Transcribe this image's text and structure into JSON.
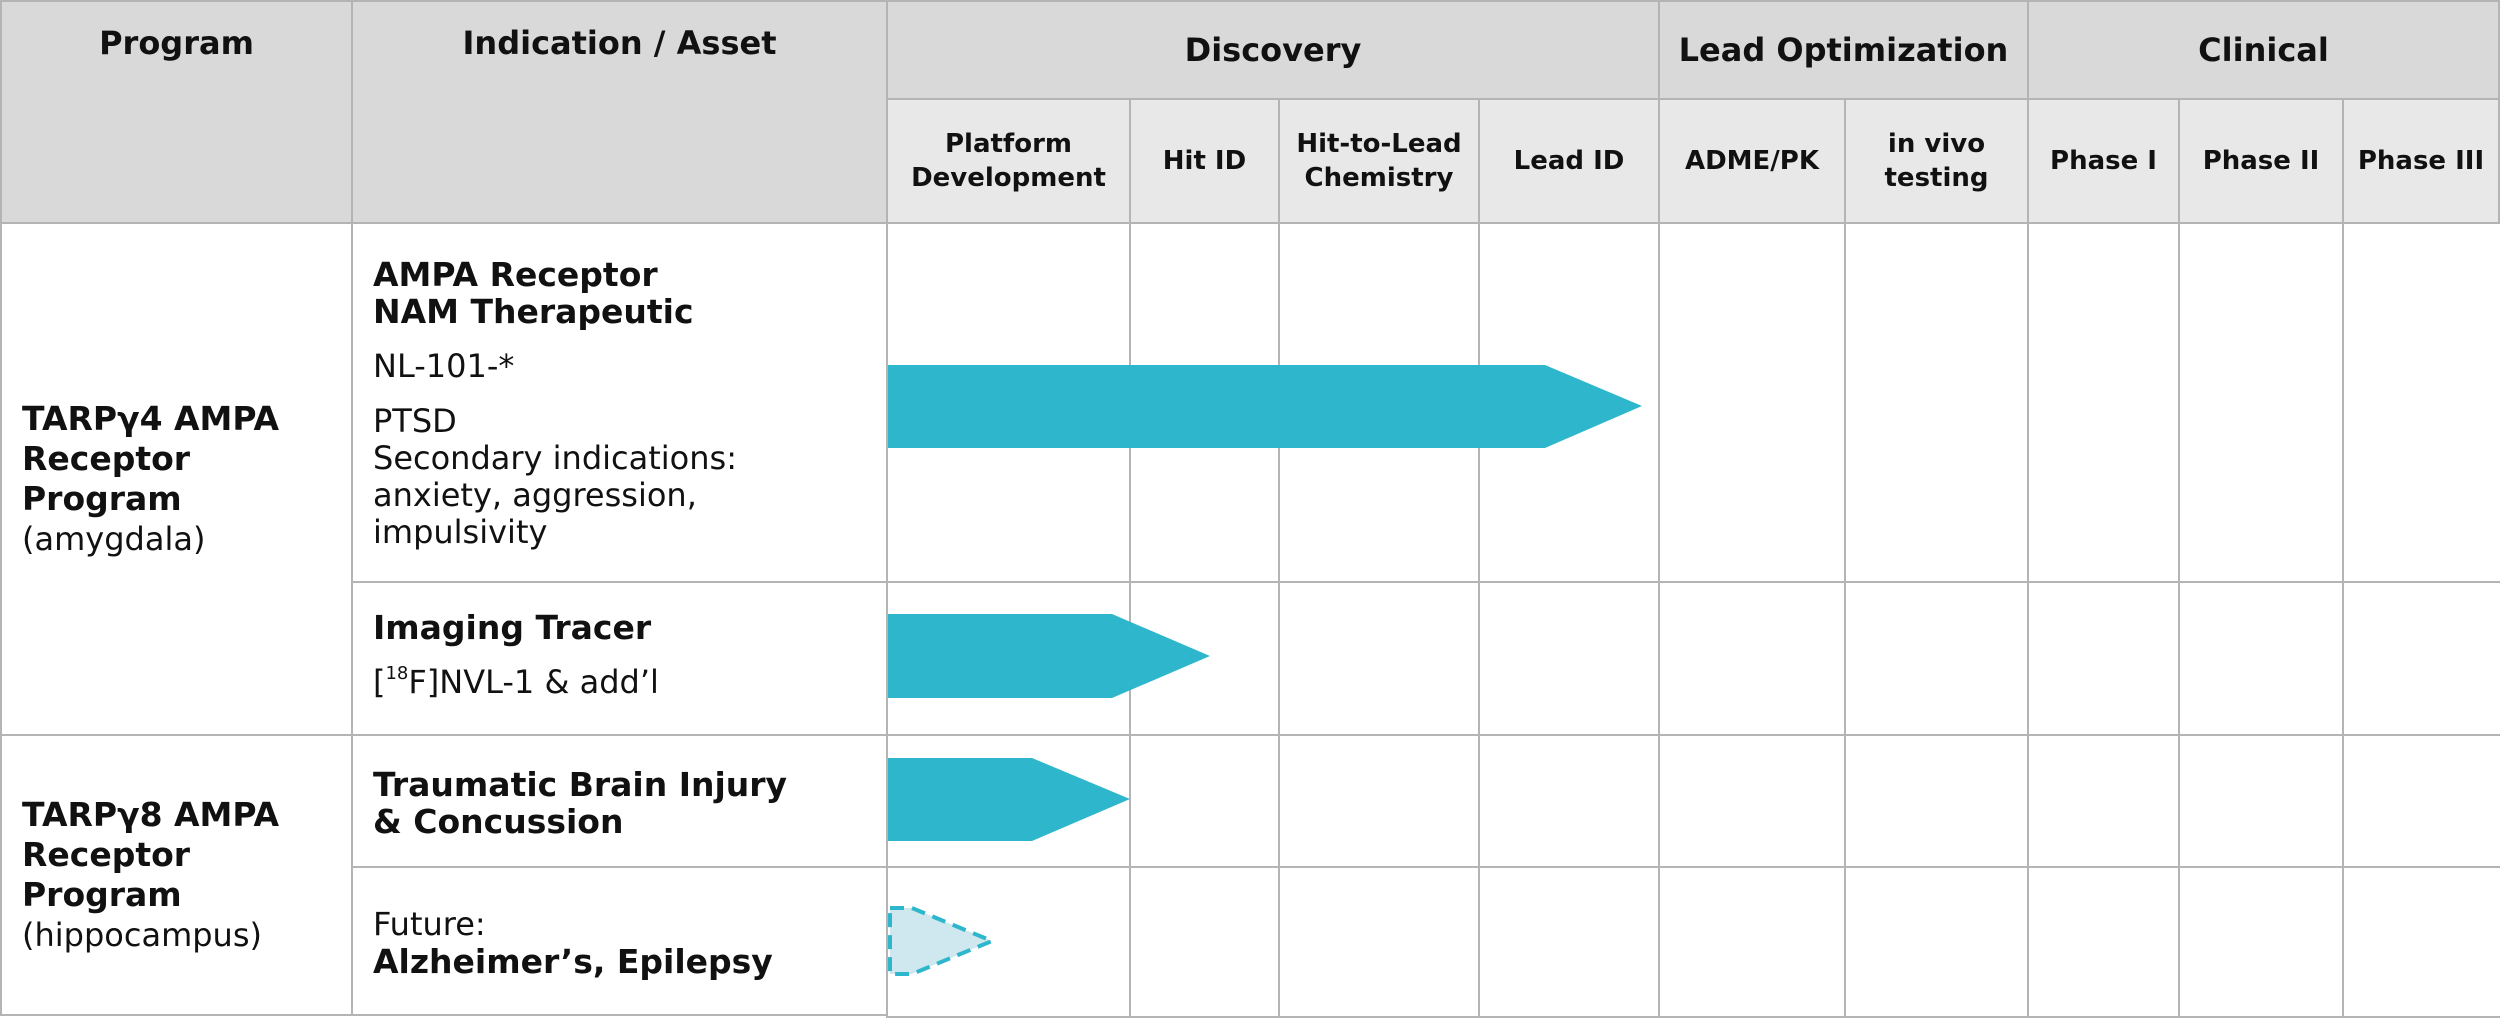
{
  "headers": {
    "program": "Program",
    "indication": "Indication / Asset",
    "discovery": "Discovery",
    "lead_optimization": "Lead Optimization",
    "clinical": "Clinical",
    "stages": [
      "Platform Development",
      "Hit ID",
      "Hit-to-Lead Chemistry",
      "Lead ID",
      "ADME/PK",
      "in vivo testing",
      "Phase I",
      "Phase II",
      "Phase III"
    ]
  },
  "programs": [
    {
      "name": "TARPγ4 AMPA Receptor Program",
      "region": "(amygdala)"
    },
    {
      "name": "TARPγ8 AMPA Receptor Program",
      "region": "(hippocampus)"
    }
  ],
  "assets": [
    {
      "title": "AMPA Receptor NAM Therapeutic",
      "code": "NL-101-*",
      "indication": "PTSD",
      "secondary": "Secondary indications: anxiety, aggression, impulsivity",
      "progress_stage": "Lead ID",
      "status": "active"
    },
    {
      "title": "Imaging Tracer",
      "code_prefix": "[",
      "code_sup": "18",
      "code_suffix": "F]NVL-1 & add’l",
      "progress_stage": "Hit ID (partial)",
      "status": "active"
    },
    {
      "title": "Traumatic Brain Injury & Concussion",
      "progress_stage": "Platform Development",
      "status": "active"
    },
    {
      "label": "Future:",
      "title": "Alzheimer’s, Epilepsy",
      "progress_stage": "Platform Development (partial)",
      "status": "future"
    }
  ],
  "colors": {
    "bar": "#2eb7cc",
    "future_fill": "#cfe7ee",
    "future_stroke": "#2eb7cc",
    "header_dark": "#d9d9d9",
    "header_light": "#e8e8e8",
    "grid": "#b4b4b4"
  }
}
